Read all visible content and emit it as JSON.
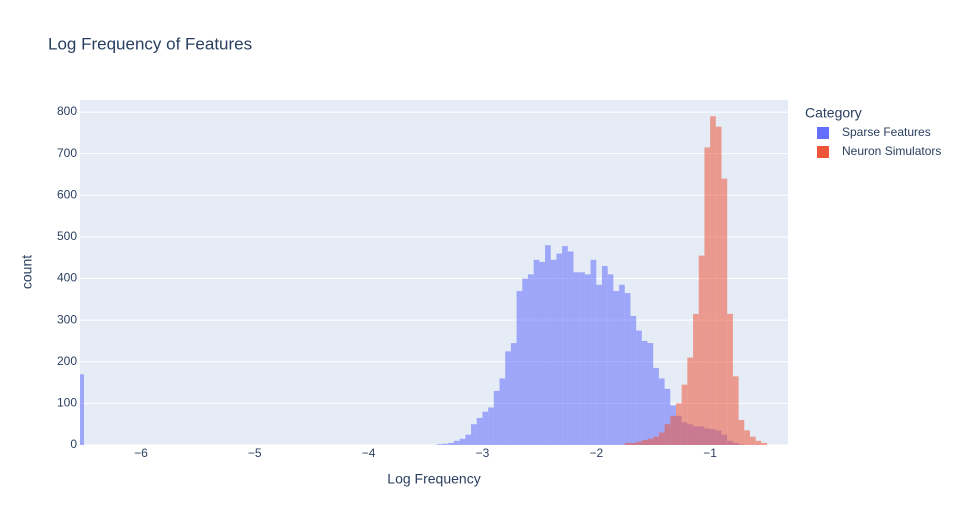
{
  "chart_data": {
    "type": "histogram",
    "title": "Log Frequency of Features",
    "x_label": "Log Frequency",
    "y_label": "count",
    "legend_title": "Category",
    "legend_position": "right",
    "barmode": "overlay",
    "opacity": 0.55,
    "grid": true,
    "xlim": [
      -6.535,
      -0.316
    ],
    "ylim": [
      0,
      829
    ],
    "xticks": [
      {
        "value": -6,
        "label": "−6"
      },
      {
        "value": -5,
        "label": "−5"
      },
      {
        "value": -4,
        "label": "−4"
      },
      {
        "value": -3,
        "label": "−3"
      },
      {
        "value": -2,
        "label": "−2"
      },
      {
        "value": -1,
        "label": "−1"
      }
    ],
    "yticks": [
      0,
      100,
      200,
      300,
      400,
      500,
      600,
      700,
      800
    ],
    "series": [
      {
        "name": "Sparse Features",
        "color": "#636efa",
        "bins": [
          -6.55,
          -6.5,
          -3.4,
          -3.35,
          -3.3,
          -3.25,
          -3.2,
          -3.15,
          -3.1,
          -3.05,
          -3.0,
          -2.95,
          -2.9,
          -2.85,
          -2.8,
          -2.75,
          -2.7,
          -2.65,
          -2.6,
          -2.55,
          -2.5,
          -2.45,
          -2.4,
          -2.35,
          -2.3,
          -2.25,
          -2.2,
          -2.15,
          -2.1,
          -2.05,
          -2.0,
          -1.95,
          -1.9,
          -1.85,
          -1.8,
          -1.75,
          -1.7,
          -1.65,
          -1.6,
          -1.55,
          -1.5,
          -1.45,
          -1.4,
          -1.35,
          -1.3,
          -1.25,
          -1.2,
          -1.15,
          -1.1,
          -1.05,
          -1.0,
          -0.95,
          -0.9,
          -0.85,
          -0.8,
          -0.75,
          -0.7
        ],
        "values": [
          170,
          0,
          2,
          3,
          5,
          10,
          15,
          25,
          50,
          65,
          80,
          90,
          130,
          160,
          225,
          245,
          370,
          400,
          410,
          445,
          440,
          480,
          445,
          460,
          478,
          465,
          415,
          415,
          410,
          445,
          385,
          430,
          410,
          370,
          385,
          365,
          310,
          275,
          250,
          245,
          185,
          160,
          135,
          95,
          70,
          55,
          50,
          45,
          45,
          40,
          38,
          35,
          25,
          10,
          5,
          2
        ]
      },
      {
        "name": "Neuron Simulators",
        "color": "#ef553b",
        "bins": [
          -1.75,
          -1.7,
          -1.65,
          -1.6,
          -1.55,
          -1.5,
          -1.45,
          -1.4,
          -1.35,
          -1.3,
          -1.25,
          -1.2,
          -1.15,
          -1.1,
          -1.05,
          -1.0,
          -0.95,
          -0.9,
          -0.85,
          -0.8,
          -0.75,
          -0.7,
          -0.65,
          -0.6,
          -0.55,
          -0.5
        ],
        "values": [
          5,
          5,
          8,
          12,
          15,
          20,
          30,
          50,
          70,
          100,
          145,
          210,
          315,
          455,
          715,
          790,
          765,
          640,
          315,
          165,
          60,
          35,
          20,
          10,
          5
        ]
      }
    ]
  }
}
